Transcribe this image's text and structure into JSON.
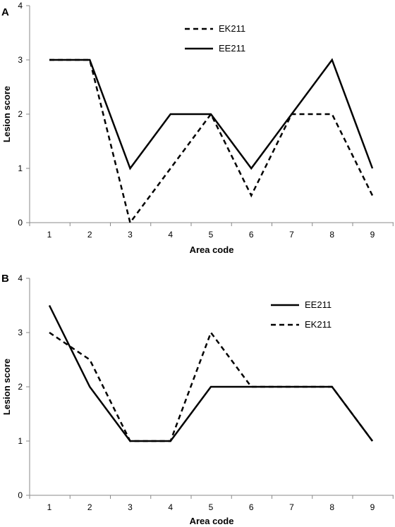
{
  "chart_data": [
    {
      "type": "line",
      "panel_label": "A",
      "categories": [
        1,
        2,
        3,
        4,
        5,
        6,
        7,
        8,
        9
      ],
      "xlabel": "Area code",
      "ylabel": "Lesion score",
      "ylim": [
        0,
        4
      ],
      "yticks": [
        0,
        1,
        2,
        3,
        4
      ],
      "grid": false,
      "legend": "top-center",
      "series": [
        {
          "name": "EK211",
          "style": "dashed",
          "color": "#000000",
          "values": [
            3,
            3,
            0,
            1,
            2,
            0.5,
            2,
            2,
            0.5
          ]
        },
        {
          "name": "EE211",
          "style": "solid",
          "color": "#000000",
          "values": [
            3,
            3,
            1,
            2,
            2,
            1,
            2,
            3,
            1
          ]
        }
      ]
    },
    {
      "type": "line",
      "panel_label": "B",
      "categories": [
        1,
        2,
        3,
        4,
        5,
        6,
        7,
        8,
        9
      ],
      "xlabel": "Area code",
      "ylabel": "Lesion score",
      "ylim": [
        0,
        4
      ],
      "yticks": [
        0,
        1,
        2,
        3,
        4
      ],
      "grid": false,
      "legend": "top-right",
      "series": [
        {
          "name": "EE211",
          "style": "solid",
          "color": "#000000",
          "values": [
            3.5,
            2,
            1,
            1,
            2,
            2,
            2,
            2,
            1
          ]
        },
        {
          "name": "EK211",
          "style": "dashed",
          "color": "#000000",
          "values": [
            3,
            2.5,
            1,
            1,
            3,
            2,
            2,
            2,
            1
          ]
        }
      ]
    }
  ]
}
